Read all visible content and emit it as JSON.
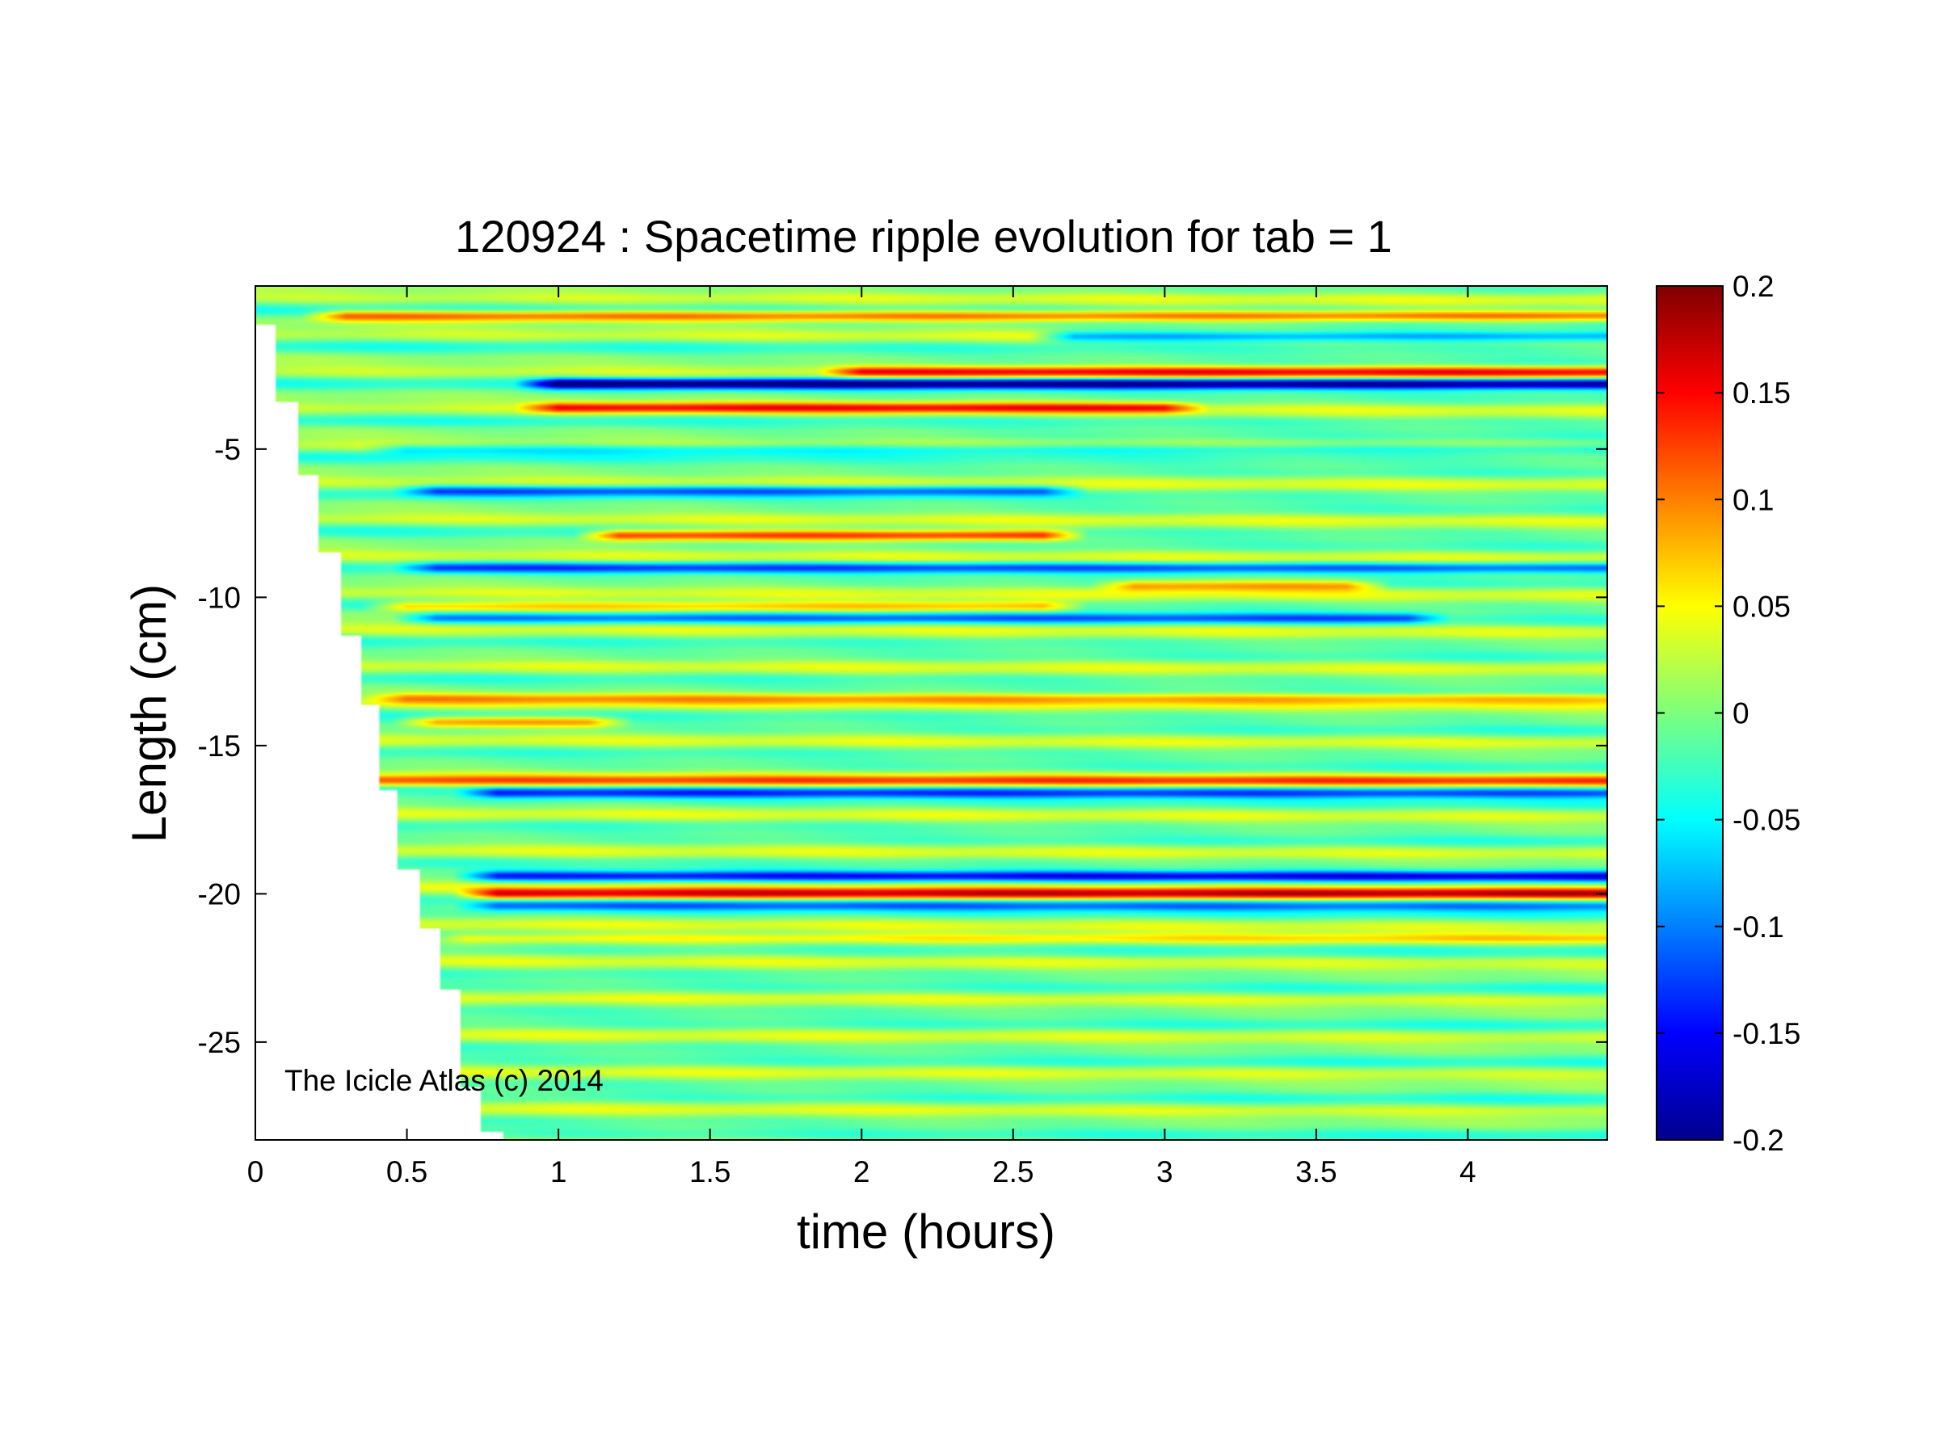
{
  "chart_data": {
    "type": "heatmap",
    "title": "120924 : Spacetime ripple evolution for tab = 1",
    "xlabel": "time (hours)",
    "ylabel": "Length (cm)",
    "annotation": "The Icicle Atlas (c) 2014",
    "colormap": "jet",
    "xlim": [
      0,
      4.46
    ],
    "ylim": [
      -28.3,
      0.5
    ],
    "x_ticks": [
      0,
      0.5,
      1,
      1.5,
      2,
      2.5,
      3,
      3.5,
      4
    ],
    "x_tick_labels": [
      "0",
      "0.5",
      "1",
      "1.5",
      "2",
      "2.5",
      "3",
      "3.5",
      "4"
    ],
    "y_ticks": [
      -5,
      -10,
      -15,
      -20,
      -25
    ],
    "y_tick_labels": [
      "-5",
      "-10",
      "-15",
      "-20",
      "-25"
    ],
    "clim": [
      -0.2,
      0.2
    ],
    "colorbar_ticks": [
      0.2,
      0.15,
      0.1,
      0.05,
      0,
      -0.05,
      -0.1,
      -0.15,
      -0.2
    ],
    "colorbar_tick_labels": [
      "0.2",
      "0.15",
      "0.1",
      "0.05",
      "0",
      "-0.05",
      "-0.1",
      "-0.15",
      "-0.2"
    ],
    "data_start_front": [
      {
        "time": 0.0,
        "length": 0.0
      },
      {
        "time": 0.07,
        "length": -0.8
      },
      {
        "time": 0.14,
        "length": -3.4
      },
      {
        "time": 0.21,
        "length": -5.9
      },
      {
        "time": 0.28,
        "length": -8.5
      },
      {
        "time": 0.35,
        "length": -11.3
      },
      {
        "time": 0.41,
        "length": -13.6
      },
      {
        "time": 0.47,
        "length": -16.5
      },
      {
        "time": 0.54,
        "length": -19.2
      },
      {
        "time": 0.61,
        "length": -21.2
      },
      {
        "time": 0.68,
        "length": -23.2
      },
      {
        "time": 0.74,
        "length": -26.5
      },
      {
        "time": 0.82,
        "length": -28.0
      },
      {
        "time": 0.86,
        "length": -28.3
      }
    ],
    "ripple_bands": [
      {
        "length": -0.5,
        "amplitude": 0.12,
        "t_start": 0.3,
        "t_end": 4.46
      },
      {
        "length": -1.2,
        "amplitude": -0.12,
        "t_start": 2.7,
        "t_end": 4.46
      },
      {
        "length": -2.4,
        "amplitude": 0.12,
        "t_start": 2.0,
        "t_end": 4.46
      },
      {
        "length": -2.8,
        "amplitude": -0.18,
        "t_start": 1.0,
        "t_end": 4.46
      },
      {
        "length": -3.6,
        "amplitude": 0.12,
        "t_start": 1.0,
        "t_end": 3.0
      },
      {
        "length": -5.0,
        "amplitude": -0.07,
        "t_start": 0.5,
        "t_end": 4.46
      },
      {
        "length": -6.4,
        "amplitude": -0.1,
        "t_start": 0.6,
        "t_end": 2.6
      },
      {
        "length": -7.9,
        "amplitude": 0.15,
        "t_start": 1.2,
        "t_end": 2.6
      },
      {
        "length": -9.0,
        "amplitude": -0.1,
        "t_start": 0.6,
        "t_end": 4.46
      },
      {
        "length": -9.6,
        "amplitude": 0.1,
        "t_start": 2.9,
        "t_end": 3.6
      },
      {
        "length": -10.3,
        "amplitude": 0.1,
        "t_start": 0.5,
        "t_end": 2.6
      },
      {
        "length": -10.7,
        "amplitude": -0.1,
        "t_start": 0.6,
        "t_end": 3.8
      },
      {
        "length": -13.4,
        "amplitude": 0.08,
        "t_start": 0.5,
        "t_end": 4.46
      },
      {
        "length": -14.2,
        "amplitude": 0.1,
        "t_start": 0.6,
        "t_end": 1.1
      },
      {
        "length": -16.2,
        "amplitude": 0.1,
        "t_start": 0.4,
        "t_end": 4.46
      },
      {
        "length": -16.6,
        "amplitude": -0.12,
        "t_start": 0.8,
        "t_end": 4.46
      },
      {
        "length": -19.4,
        "amplitude": -0.13,
        "t_start": 0.8,
        "t_end": 4.46
      },
      {
        "length": -20.0,
        "amplitude": 0.16,
        "t_start": 0.8,
        "t_end": 4.46
      },
      {
        "length": -20.4,
        "amplitude": -0.1,
        "t_start": 0.8,
        "t_end": 4.46
      },
      {
        "length": -21.5,
        "amplitude": 0.07,
        "t_start": 0.7,
        "t_end": 4.46
      }
    ]
  }
}
